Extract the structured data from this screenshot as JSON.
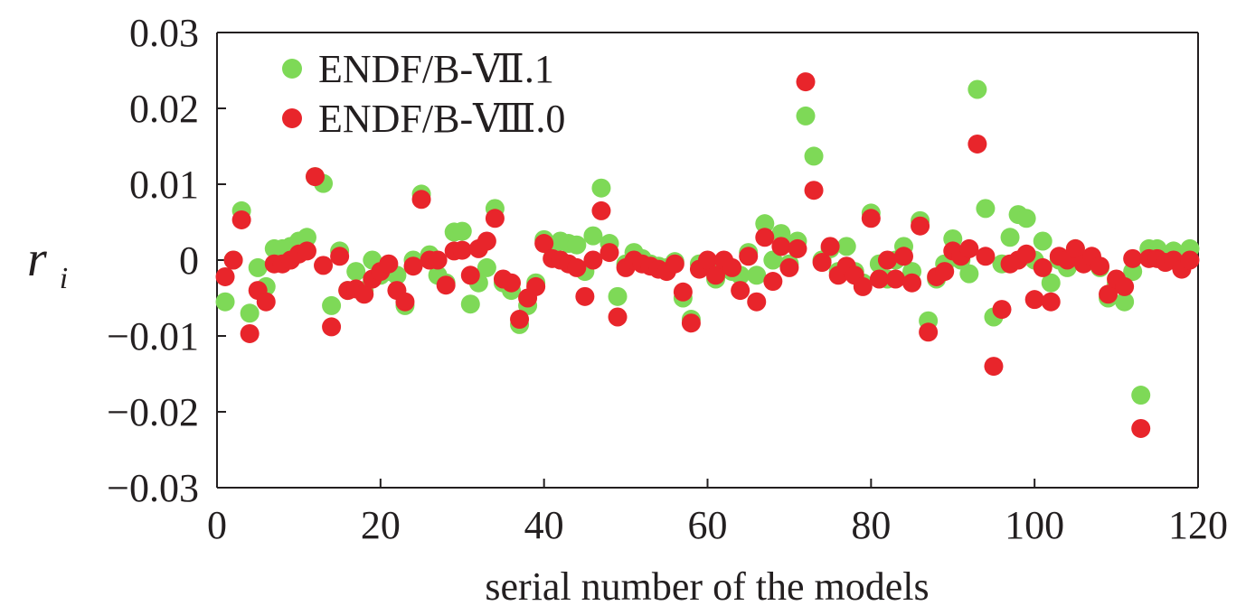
{
  "chart_data": {
    "type": "scatter",
    "xlabel": "serial number of the models",
    "ylabel": {
      "main": "r",
      "sub": "i"
    },
    "xlim": [
      0,
      120
    ],
    "ylim": [
      -0.03,
      0.03
    ],
    "xticks": [
      0,
      20,
      40,
      60,
      80,
      100,
      120
    ],
    "xtick_labels": [
      "0",
      "20",
      "40",
      "60",
      "80",
      "100",
      "120"
    ],
    "yticks": [
      0.03,
      0.02,
      0.01,
      0,
      -0.01,
      -0.02,
      -0.03
    ],
    "ytick_labels": [
      "0.03",
      "0.02",
      "0.01",
      "0",
      "−0.01",
      "−0.02",
      "−0.03"
    ],
    "grid": false,
    "legend": "top-left",
    "series": [
      {
        "name": "ENDF/B-Ⅶ.1",
        "color": "#7ed957",
        "x": [
          1,
          2,
          3,
          4,
          5,
          6,
          7,
          8,
          9,
          10,
          11,
          12,
          13,
          14,
          15,
          16,
          17,
          18,
          19,
          20,
          21,
          22,
          23,
          24,
          25,
          26,
          27,
          28,
          29,
          30,
          31,
          32,
          33,
          34,
          35,
          36,
          37,
          38,
          39,
          40,
          41,
          42,
          43,
          44,
          45,
          46,
          47,
          48,
          49,
          50,
          51,
          52,
          53,
          54,
          55,
          56,
          57,
          58,
          59,
          60,
          61,
          62,
          63,
          64,
          65,
          66,
          67,
          68,
          69,
          70,
          71,
          72,
          73,
          74,
          75,
          76,
          77,
          78,
          79,
          80,
          81,
          82,
          83,
          84,
          85,
          86,
          87,
          88,
          89,
          90,
          91,
          92,
          93,
          94,
          95,
          96,
          97,
          98,
          99,
          100,
          101,
          102,
          103,
          104,
          105,
          106,
          107,
          108,
          109,
          110,
          111,
          112,
          113,
          114,
          115,
          116,
          117,
          118,
          119
        ],
        "y": [
          -0.0055,
          0.0,
          0.0065,
          -0.007,
          -0.001,
          -0.0035,
          0.0015,
          0.0015,
          0.0018,
          0.0025,
          0.003,
          0.011,
          0.0101,
          -0.006,
          0.0012,
          -0.004,
          -0.0015,
          -0.004,
          0.0,
          -0.002,
          -0.0015,
          -0.002,
          -0.006,
          0.0,
          0.0087,
          0.0007,
          -0.002,
          -0.003,
          0.0037,
          0.0038,
          -0.0058,
          -0.003,
          -0.001,
          0.0068,
          -0.003,
          -0.004,
          -0.0085,
          -0.006,
          -0.003,
          0.0027,
          0.0015,
          0.0025,
          0.0022,
          0.002,
          -0.0015,
          0.0032,
          0.0095,
          0.0022,
          -0.0048,
          -0.0005,
          0.001,
          0.0002,
          -0.0005,
          -0.0008,
          -0.001,
          -0.0002,
          -0.005,
          -0.0078,
          -0.0005,
          -0.0002,
          -0.0025,
          -0.0003,
          -0.0015,
          -0.002,
          0.001,
          -0.002,
          0.0048,
          0.0,
          0.0035,
          -0.0005,
          0.0025,
          0.019,
          0.0137,
          0.0,
          0.0015,
          -0.0015,
          0.0018,
          -0.0015,
          -0.003,
          0.0062,
          -0.0005,
          -0.0025,
          0.0,
          0.0018,
          -0.0015,
          0.0052,
          -0.008,
          -0.0025,
          -0.0005,
          0.0028,
          0.0,
          -0.0018,
          0.0225,
          0.0068,
          -0.0075,
          -0.0005,
          0.003,
          0.006,
          0.0055,
          0.0,
          0.0025,
          -0.003,
          0.0,
          -0.001,
          0.0015,
          0.0,
          0.0,
          -0.001,
          -0.005,
          -0.003,
          -0.0055,
          -0.0015,
          -0.0178,
          0.0015,
          0.0015,
          0.0005,
          0.0012,
          0.0005,
          0.0015
        ]
      },
      {
        "name": "ENDF/B-Ⅷ.0",
        "color": "#e8252b",
        "x": [
          1,
          2,
          3,
          4,
          5,
          6,
          7,
          8,
          9,
          10,
          11,
          12,
          13,
          14,
          15,
          16,
          17,
          18,
          19,
          20,
          21,
          22,
          23,
          24,
          25,
          26,
          27,
          28,
          29,
          30,
          31,
          32,
          33,
          34,
          35,
          36,
          37,
          38,
          39,
          40,
          41,
          42,
          43,
          44,
          45,
          46,
          47,
          48,
          49,
          50,
          51,
          52,
          53,
          54,
          55,
          56,
          57,
          58,
          59,
          60,
          61,
          62,
          63,
          64,
          65,
          66,
          67,
          68,
          69,
          70,
          71,
          72,
          73,
          74,
          75,
          76,
          77,
          78,
          79,
          80,
          81,
          82,
          83,
          84,
          85,
          86,
          87,
          88,
          89,
          90,
          91,
          92,
          93,
          94,
          95,
          96,
          97,
          98,
          99,
          100,
          101,
          102,
          103,
          104,
          105,
          106,
          107,
          108,
          109,
          110,
          111,
          112,
          113,
          114,
          115,
          116,
          117,
          118,
          119
        ],
        "y": [
          -0.0022,
          0.0,
          0.0053,
          -0.0097,
          -0.004,
          -0.0055,
          -0.0005,
          -0.0005,
          0.0,
          0.0008,
          0.0012,
          0.011,
          -0.0007,
          -0.0088,
          0.0005,
          -0.004,
          -0.0038,
          -0.0045,
          -0.0025,
          -0.0015,
          -0.0005,
          -0.004,
          -0.0055,
          -0.0008,
          0.008,
          0.0,
          0.0,
          -0.0033,
          0.0012,
          0.0013,
          -0.002,
          0.0015,
          0.0025,
          0.0055,
          -0.0025,
          -0.003,
          -0.0078,
          -0.005,
          -0.0035,
          0.0022,
          0.0002,
          0.0,
          -0.0005,
          -0.001,
          -0.0048,
          0.0,
          0.0065,
          0.001,
          -0.0075,
          -0.001,
          0.0,
          -0.0005,
          -0.0008,
          -0.0012,
          -0.0015,
          -0.0005,
          -0.0042,
          -0.0083,
          -0.0012,
          0.0,
          -0.002,
          0.0,
          -0.001,
          -0.004,
          0.0005,
          -0.0055,
          0.003,
          -0.0028,
          0.0018,
          -0.001,
          0.0015,
          0.0235,
          0.0092,
          -0.0003,
          0.0018,
          -0.002,
          -0.0008,
          -0.002,
          -0.0035,
          0.0055,
          -0.0025,
          0.0,
          -0.0025,
          0.0005,
          -0.003,
          0.0045,
          -0.0095,
          -0.0022,
          -0.0015,
          0.0012,
          0.0005,
          0.0015,
          0.0153,
          0.0005,
          -0.014,
          -0.0065,
          -0.0005,
          0.0,
          0.0008,
          -0.0052,
          -0.001,
          -0.0055,
          0.0005,
          0.0,
          0.0015,
          -0.0005,
          0.0005,
          -0.0008,
          -0.0045,
          -0.0025,
          -0.0035,
          0.0002,
          -0.0222,
          0.0002,
          0.0002,
          -0.0003,
          0.0,
          -0.0012,
          0.0
        ]
      }
    ]
  }
}
